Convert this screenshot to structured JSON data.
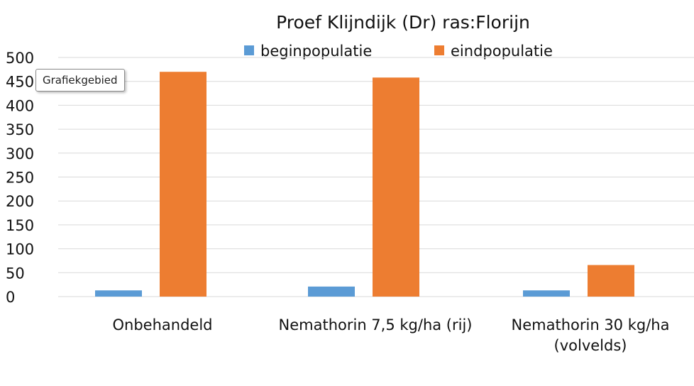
{
  "chart_data": {
    "type": "bar",
    "title": "Proef Klijndijk (Dr) ras:Florijn",
    "categories": [
      [
        "Onbehandeld"
      ],
      [
        "Nemathorin 7,5 kg/ha (rij)"
      ],
      [
        "Nemathorin 30 kg/ha",
        "(volvelds)"
      ]
    ],
    "series": [
      {
        "name": "beginpopulatie",
        "color": "#5b9bd5",
        "values": [
          13,
          21,
          13
        ]
      },
      {
        "name": "eindpopulatie",
        "color": "#ed7d31",
        "values": [
          470,
          458,
          66
        ]
      }
    ],
    "ylim": [
      0,
      500
    ],
    "yticks": [
      0,
      50,
      100,
      150,
      200,
      250,
      300,
      350,
      400,
      450,
      500
    ],
    "grid": true,
    "legend_position": "top"
  },
  "tooltip": {
    "text": "Grafiekgebied"
  }
}
